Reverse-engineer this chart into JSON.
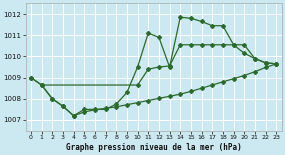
{
  "bg_color": "#cce8f0",
  "grid_color": "#ffffff",
  "line_color": "#2d6a2d",
  "title": "Graphe pression niveau de la mer (hPa)",
  "xlim": [
    -0.5,
    23.5
  ],
  "ylim": [
    1006.5,
    1012.5
  ],
  "yticks": [
    1007,
    1008,
    1009,
    1010,
    1011,
    1012
  ],
  "xticks": [
    0,
    1,
    2,
    3,
    4,
    5,
    6,
    7,
    8,
    9,
    10,
    11,
    12,
    13,
    14,
    15,
    16,
    17,
    18,
    19,
    20,
    21,
    22,
    23
  ],
  "series1_x": [
    0,
    1,
    2,
    3,
    4,
    5,
    6,
    7,
    8,
    9,
    10,
    11,
    12,
    13,
    14,
    15,
    16,
    17,
    18,
    19,
    20,
    21,
    22,
    23
  ],
  "series1_y": [
    1009.0,
    1008.65,
    1008.0,
    1007.65,
    1007.2,
    1007.5,
    1007.5,
    1007.5,
    1007.75,
    1008.3,
    1009.5,
    1011.1,
    1010.9,
    1009.5,
    1011.85,
    1011.8,
    1011.65,
    1011.45,
    1011.45,
    1010.55,
    1010.15,
    1009.9,
    1009.7,
    1009.65
  ],
  "series2_x": [
    1,
    2,
    3,
    4,
    5,
    6,
    7,
    8,
    9,
    10,
    11,
    12,
    13,
    14,
    15,
    16,
    17,
    18,
    19,
    20,
    21,
    22,
    23
  ],
  "series2_y": [
    1008.65,
    1008.0,
    1007.65,
    1007.2,
    1007.38,
    1007.48,
    1007.55,
    1007.62,
    1007.72,
    1007.82,
    1007.92,
    1008.02,
    1008.12,
    1008.22,
    1008.35,
    1008.5,
    1008.65,
    1008.8,
    1008.95,
    1009.1,
    1009.28,
    1009.48,
    1009.65
  ],
  "series3_x": [
    0,
    1,
    10,
    11,
    12,
    13,
    14,
    15,
    16,
    17,
    18,
    19,
    20,
    21,
    22,
    23
  ],
  "series3_y": [
    1009.0,
    1008.65,
    1008.65,
    1009.4,
    1009.5,
    1009.55,
    1010.55,
    1010.55,
    1010.55,
    1010.55,
    1010.55,
    1010.55,
    1010.55,
    1009.9,
    1009.7,
    1009.65
  ]
}
